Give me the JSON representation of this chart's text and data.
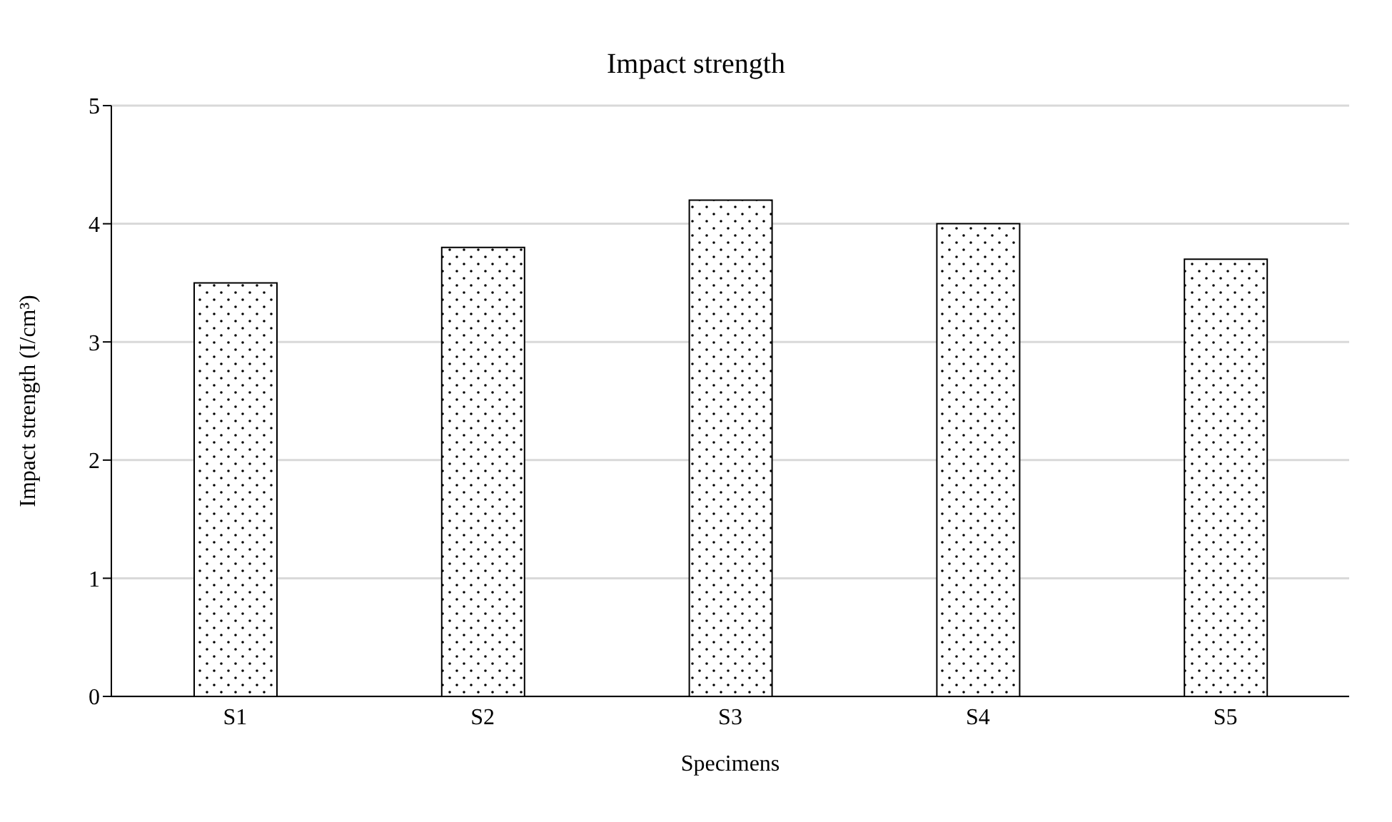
{
  "chart_data": {
    "type": "bar",
    "title": "Impact strength",
    "xlabel": "Specimens",
    "ylabel": "Impact strength (I/cm³)",
    "categories": [
      "S1",
      "S2",
      "S3",
      "S4",
      "S5"
    ],
    "values": [
      3.5,
      3.8,
      4.2,
      4.0,
      3.7
    ],
    "color": "#000000",
    "ylim": [
      0,
      5
    ],
    "yticks": [
      0,
      1,
      2,
      3,
      4,
      5
    ],
    "grid": "y"
  }
}
